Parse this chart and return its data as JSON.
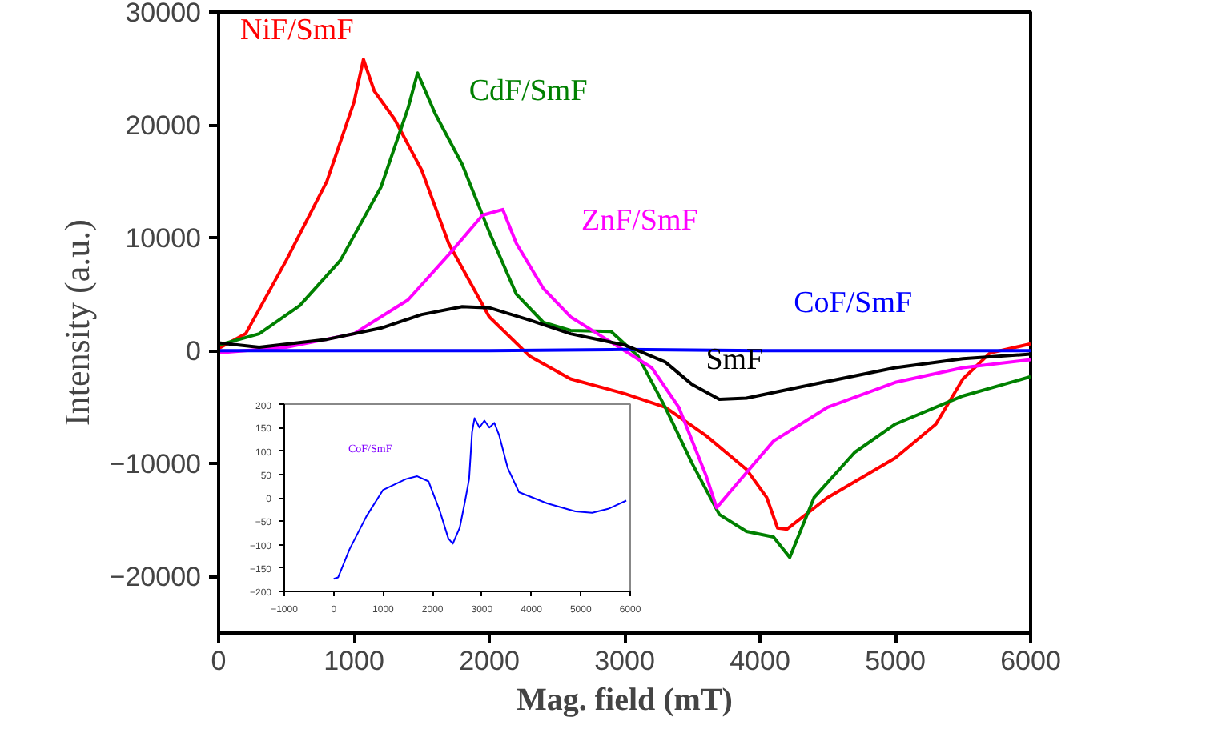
{
  "chart_data": [
    {
      "type": "line",
      "xlabel": "Mag. field (mT)",
      "ylabel": "Intensity (a.u.)",
      "xlim": [
        0,
        6000
      ],
      "ylim": [
        -25000,
        30000
      ],
      "xticks": [
        0,
        1000,
        2000,
        3000,
        4000,
        5000,
        6000
      ],
      "yticks": [
        -20000,
        -10000,
        0,
        10000,
        20000,
        30000
      ],
      "grid": false,
      "legend": false,
      "marker": "none",
      "line_style": "solid",
      "series": [
        {
          "name": "NiF/SmF",
          "color": "#ff0000",
          "x": [
            0,
            200,
            500,
            800,
            1000,
            1070,
            1150,
            1300,
            1500,
            1700,
            2000,
            2300,
            2600,
            3000,
            3300,
            3600,
            3900,
            4050,
            4130,
            4200,
            4500,
            5000,
            5300,
            5500,
            5700,
            6000
          ],
          "values": [
            200,
            1500,
            8000,
            15000,
            22000,
            25800,
            23000,
            20500,
            16000,
            9500,
            3000,
            -500,
            -2500,
            -3800,
            -5000,
            -7500,
            -10500,
            -13000,
            -15700,
            -15800,
            -13000,
            -9500,
            -6500,
            -2500,
            -200,
            600
          ]
        },
        {
          "name": "CdF/SmF",
          "color": "#008000",
          "x": [
            0,
            300,
            600,
            900,
            1200,
            1400,
            1470,
            1600,
            1800,
            2000,
            2200,
            2400,
            2600,
            2900,
            3100,
            3300,
            3500,
            3700,
            3900,
            4100,
            4220,
            4400,
            4700,
            5000,
            5500,
            6000
          ],
          "values": [
            500,
            1500,
            4000,
            8000,
            14500,
            21500,
            24600,
            21000,
            16500,
            10500,
            5000,
            2500,
            1800,
            1700,
            -500,
            -5000,
            -10000,
            -14500,
            -16000,
            -16500,
            -18300,
            -13000,
            -9000,
            -6500,
            -4000,
            -2300
          ]
        },
        {
          "name": "ZnF/SmF",
          "color": "#ff00ff",
          "x": [
            0,
            500,
            1000,
            1400,
            1700,
            1950,
            2100,
            2200,
            2400,
            2600,
            2800,
            3000,
            3200,
            3400,
            3600,
            3680,
            3850,
            4100,
            4500,
            5000,
            5500,
            6000
          ],
          "values": [
            -200,
            300,
            1500,
            4500,
            8500,
            12000,
            12500,
            9500,
            5500,
            3000,
            1500,
            0,
            -1500,
            -5000,
            -11000,
            -13900,
            -11500,
            -8000,
            -5000,
            -2800,
            -1500,
            -800
          ]
        },
        {
          "name": "CoF/SmF",
          "color": "#0000ff",
          "x": [
            0,
            1000,
            2000,
            3000,
            4000,
            5000,
            6000
          ],
          "values": [
            0,
            0,
            0,
            100,
            0,
            0,
            0
          ]
        },
        {
          "name": "SmF",
          "color": "#000000",
          "x": [
            0,
            300,
            800,
            1200,
            1500,
            1800,
            2000,
            2300,
            2600,
            3000,
            3300,
            3500,
            3700,
            3900,
            4300,
            5000,
            5500,
            6000
          ],
          "values": [
            700,
            300,
            1000,
            2000,
            3200,
            3900,
            3800,
            2700,
            1500,
            500,
            -1000,
            -3000,
            -4300,
            -4200,
            -3200,
            -1500,
            -700,
            -300
          ]
        }
      ]
    },
    {
      "type": "line",
      "xlim": [
        -1000,
        6000
      ],
      "ylim": [
        -200,
        200
      ],
      "xticks": [
        -1000,
        0,
        1000,
        2000,
        3000,
        4000,
        5000,
        6000
      ],
      "yticks": [
        -200,
        -150,
        -100,
        -50,
        0,
        50,
        100,
        150,
        200
      ],
      "grid": false,
      "legend": false,
      "marker": "none",
      "line_style": "solid",
      "annotations": [
        "CoF/SmF"
      ],
      "series": [
        {
          "color": "#0000ff",
          "x": [
            0,
            90,
            320,
            660,
            1000,
            1460,
            1690,
            1920,
            2150,
            2320,
            2410,
            2550,
            2660,
            2740,
            2800,
            2850,
            2950,
            3050,
            3150,
            3250,
            3350,
            3520,
            3750,
            4320,
            4890,
            5230,
            5570,
            5920
          ],
          "values": [
            -173,
            -170,
            -110,
            -40,
            17,
            40,
            46,
            35,
            -29,
            -87,
            -98,
            -64,
            -6,
            40,
            140,
            170,
            150,
            165,
            150,
            160,
            133,
            64,
            12,
            -12,
            -29,
            -32,
            -23,
            -6
          ]
        }
      ]
    }
  ]
}
